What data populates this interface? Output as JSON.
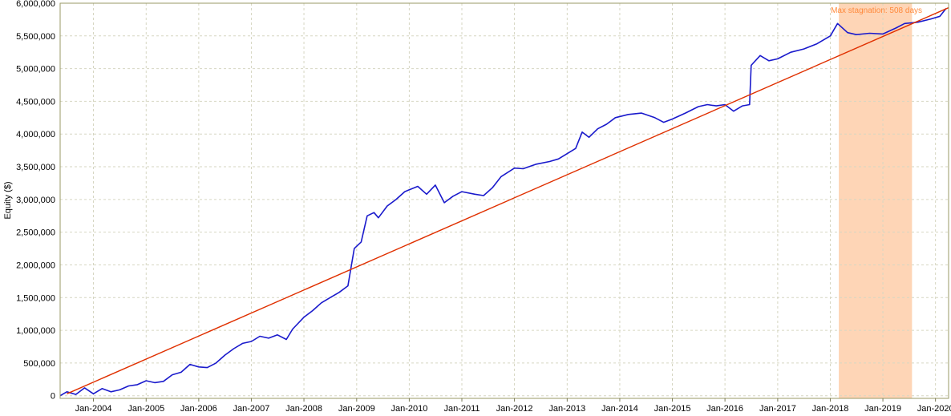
{
  "chart_data": {
    "type": "line",
    "title": "",
    "xlabel": "",
    "ylabel": "Equity ($)",
    "ylim": [
      -40000,
      6000000
    ],
    "xlim": [
      "2003-05-15",
      "2020-04-01"
    ],
    "grid": true,
    "y_ticks": [
      {
        "value": 0,
        "label": "0"
      },
      {
        "value": 500000,
        "label": "500,000"
      },
      {
        "value": 1000000,
        "label": "1,000,000"
      },
      {
        "value": 1500000,
        "label": "1,500,000"
      },
      {
        "value": 2000000,
        "label": "2,000,000"
      },
      {
        "value": 2500000,
        "label": "2,500,000"
      },
      {
        "value": 3000000,
        "label": "3,000,000"
      },
      {
        "value": 3500000,
        "label": "3,500,000"
      },
      {
        "value": 4000000,
        "label": "4,000,000"
      },
      {
        "value": 4500000,
        "label": "4,500,000"
      },
      {
        "value": 5000000,
        "label": "5,000,000"
      },
      {
        "value": 5500000,
        "label": "5,500,000"
      },
      {
        "value": 6000000,
        "label": "6,000,000"
      }
    ],
    "x_ticks": [
      {
        "value": "2004-01-01",
        "label": "Jan-2004"
      },
      {
        "value": "2005-01-01",
        "label": "Jan-2005"
      },
      {
        "value": "2006-01-01",
        "label": "Jan-2006"
      },
      {
        "value": "2007-01-01",
        "label": "Jan-2007"
      },
      {
        "value": "2008-01-01",
        "label": "Jan-2008"
      },
      {
        "value": "2009-01-01",
        "label": "Jan-2009"
      },
      {
        "value": "2010-01-01",
        "label": "Jan-2010"
      },
      {
        "value": "2011-01-01",
        "label": "Jan-2011"
      },
      {
        "value": "2012-01-01",
        "label": "Jan-2012"
      },
      {
        "value": "2013-01-01",
        "label": "Jan-2013"
      },
      {
        "value": "2014-01-01",
        "label": "Jan-2014"
      },
      {
        "value": "2015-01-01",
        "label": "Jan-2015"
      },
      {
        "value": "2016-01-01",
        "label": "Jan-2016"
      },
      {
        "value": "2017-01-01",
        "label": "Jan-2017"
      },
      {
        "value": "2018-01-01",
        "label": "Jan-2018"
      },
      {
        "value": "2019-01-01",
        "label": "Jan-2019"
      },
      {
        "value": "2020-01-01",
        "label": "Jan-2020"
      }
    ],
    "series": [
      {
        "color": "#1a1acc",
        "points": [
          [
            "2003-05-15",
            0
          ],
          [
            "2003-07-01",
            60000
          ],
          [
            "2003-09-01",
            20000
          ],
          [
            "2003-11-01",
            120000
          ],
          [
            "2004-01-01",
            30000
          ],
          [
            "2004-03-01",
            110000
          ],
          [
            "2004-05-01",
            60000
          ],
          [
            "2004-07-01",
            90000
          ],
          [
            "2004-09-01",
            150000
          ],
          [
            "2004-11-01",
            170000
          ],
          [
            "2005-01-01",
            230000
          ],
          [
            "2005-03-01",
            200000
          ],
          [
            "2005-05-01",
            220000
          ],
          [
            "2005-07-01",
            320000
          ],
          [
            "2005-09-01",
            360000
          ],
          [
            "2005-11-01",
            480000
          ],
          [
            "2006-01-01",
            440000
          ],
          [
            "2006-03-01",
            430000
          ],
          [
            "2006-05-01",
            500000
          ],
          [
            "2006-07-01",
            620000
          ],
          [
            "2006-09-01",
            720000
          ],
          [
            "2006-11-01",
            800000
          ],
          [
            "2007-01-01",
            830000
          ],
          [
            "2007-03-01",
            910000
          ],
          [
            "2007-05-01",
            880000
          ],
          [
            "2007-07-01",
            930000
          ],
          [
            "2007-09-01",
            860000
          ],
          [
            "2007-10-15",
            1020000
          ],
          [
            "2008-01-01",
            1200000
          ],
          [
            "2008-03-01",
            1300000
          ],
          [
            "2008-05-01",
            1420000
          ],
          [
            "2008-07-01",
            1500000
          ],
          [
            "2008-09-01",
            1580000
          ],
          [
            "2008-11-01",
            1680000
          ],
          [
            "2008-12-15",
            2250000
          ],
          [
            "2009-02-01",
            2350000
          ],
          [
            "2009-03-15",
            2750000
          ],
          [
            "2009-05-01",
            2800000
          ],
          [
            "2009-06-01",
            2720000
          ],
          [
            "2009-08-01",
            2900000
          ],
          [
            "2009-10-01",
            3000000
          ],
          [
            "2009-12-01",
            3120000
          ],
          [
            "2010-03-01",
            3200000
          ],
          [
            "2010-05-01",
            3080000
          ],
          [
            "2010-07-01",
            3220000
          ],
          [
            "2010-09-01",
            2950000
          ],
          [
            "2010-11-01",
            3050000
          ],
          [
            "2011-01-01",
            3120000
          ],
          [
            "2011-04-01",
            3080000
          ],
          [
            "2011-06-01",
            3060000
          ],
          [
            "2011-08-01",
            3180000
          ],
          [
            "2011-10-01",
            3350000
          ],
          [
            "2012-01-01",
            3480000
          ],
          [
            "2012-03-01",
            3470000
          ],
          [
            "2012-06-01",
            3540000
          ],
          [
            "2012-09-01",
            3580000
          ],
          [
            "2012-11-01",
            3620000
          ],
          [
            "2013-01-01",
            3700000
          ],
          [
            "2013-03-01",
            3780000
          ],
          [
            "2013-04-15",
            4030000
          ],
          [
            "2013-06-01",
            3950000
          ],
          [
            "2013-08-01",
            4080000
          ],
          [
            "2013-10-01",
            4150000
          ],
          [
            "2013-12-01",
            4250000
          ],
          [
            "2014-03-01",
            4300000
          ],
          [
            "2014-06-01",
            4320000
          ],
          [
            "2014-09-01",
            4250000
          ],
          [
            "2014-11-01",
            4180000
          ],
          [
            "2015-01-01",
            4230000
          ],
          [
            "2015-04-01",
            4320000
          ],
          [
            "2015-07-01",
            4420000
          ],
          [
            "2015-09-01",
            4450000
          ],
          [
            "2015-11-01",
            4430000
          ],
          [
            "2016-01-01",
            4450000
          ],
          [
            "2016-03-01",
            4350000
          ],
          [
            "2016-05-01",
            4430000
          ],
          [
            "2016-06-20",
            4450000
          ],
          [
            "2016-07-01",
            5050000
          ],
          [
            "2016-09-01",
            5200000
          ],
          [
            "2016-11-01",
            5120000
          ],
          [
            "2017-01-01",
            5150000
          ],
          [
            "2017-04-01",
            5250000
          ],
          [
            "2017-07-01",
            5300000
          ],
          [
            "2017-10-01",
            5380000
          ],
          [
            "2018-01-01",
            5500000
          ],
          [
            "2018-02-20",
            5690000
          ],
          [
            "2018-05-01",
            5550000
          ],
          [
            "2018-07-01",
            5520000
          ],
          [
            "2018-10-01",
            5540000
          ],
          [
            "2019-01-01",
            5530000
          ],
          [
            "2019-04-01",
            5620000
          ],
          [
            "2019-06-01",
            5690000
          ],
          [
            "2019-09-01",
            5710000
          ],
          [
            "2019-12-01",
            5760000
          ],
          [
            "2020-02-01",
            5800000
          ],
          [
            "2020-03-15",
            5920000
          ]
        ]
      },
      {
        "color": "#e03000",
        "points": [
          [
            "2003-07-01",
            30000
          ],
          [
            "2020-03-31",
            5930000
          ]
        ]
      }
    ],
    "highlight": {
      "x_start": "2018-03-01",
      "x_end": "2019-07-22",
      "color": "#fed5b6",
      "label": "Max stagnation: 508 days",
      "label_color": "#ff8a3d"
    }
  }
}
